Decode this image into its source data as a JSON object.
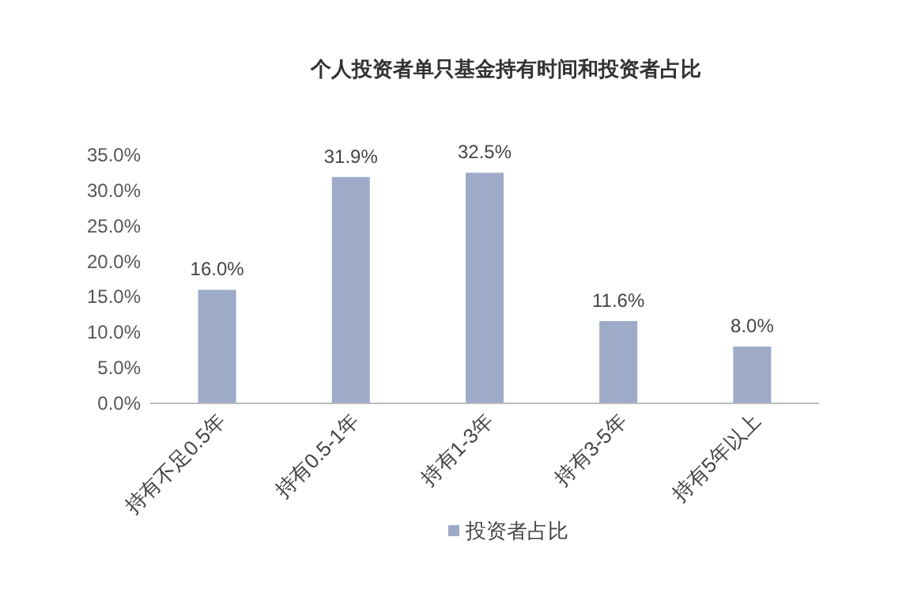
{
  "chart_data": {
    "type": "bar",
    "title": "个人投资者单只基金持有时间和投资者占比",
    "categories": [
      "持有不足0.5年",
      "持有0.5-1年",
      "持有1-3年",
      "持有3-5年",
      "持有5年以上"
    ],
    "series": [
      {
        "name": "投资者占比",
        "color": "#9dabc9",
        "values": [
          16.0,
          31.9,
          32.5,
          11.6,
          8.0
        ],
        "value_labels": [
          "16.0%",
          "31.9%",
          "32.5%",
          "11.6%",
          "8.0%"
        ]
      }
    ],
    "ylim": [
      0,
      35
    ],
    "yticks": [
      {
        "value": 0,
        "label": "0.0%"
      },
      {
        "value": 5,
        "label": "5.0%"
      },
      {
        "value": 10,
        "label": "10.0%"
      },
      {
        "value": 15,
        "label": "15.0%"
      },
      {
        "value": 20,
        "label": "20.0%"
      },
      {
        "value": 25,
        "label": "25.0%"
      },
      {
        "value": 30,
        "label": "30.0%"
      },
      {
        "value": 35,
        "label": "35.0%"
      }
    ],
    "legend": "bottom"
  }
}
